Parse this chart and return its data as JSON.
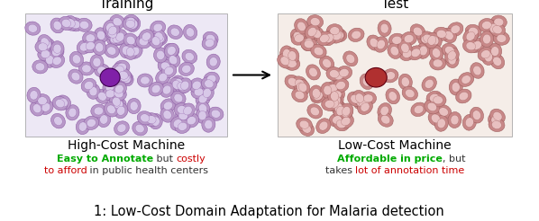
{
  "title_left": "Training",
  "title_right": "Test",
  "label_left": "High-Cost Machine",
  "label_right": "Low-Cost Machine",
  "caption": "1: Low-Cost Domain Adaptation for Malaria detection",
  "left_bg": "#ede8f5",
  "right_bg": "#f5ede8",
  "left_cell_outer": "#b898c8",
  "left_cell_inner": "#d8c8e8",
  "left_infected": "#8020a8",
  "right_cell_outer": "#c88888",
  "right_cell_inner": "#e8c0c0",
  "right_infected": "#b03030",
  "left_text_line1_parts": [
    {
      "text": "Easy to Annotate",
      "color": "#00aa00",
      "bold": true
    },
    {
      "text": " but ",
      "color": "#333333",
      "bold": false
    },
    {
      "text": "costly",
      "color": "#cc0000",
      "bold": false
    }
  ],
  "left_text_line2_parts": [
    {
      "text": "to afford",
      "color": "#cc0000",
      "bold": false
    },
    {
      "text": " in public health centers",
      "color": "#333333",
      "bold": false
    }
  ],
  "right_text_line1_parts": [
    {
      "text": "Affordable in price",
      "color": "#00aa00",
      "bold": true
    },
    {
      "text": ", but",
      "color": "#333333",
      "bold": false
    }
  ],
  "right_text_line2_parts": [
    {
      "text": "takes ",
      "color": "#333333",
      "bold": false
    },
    {
      "text": "lot of annotation time",
      "color": "#cc0000",
      "bold": false
    }
  ],
  "fig_width": 5.98,
  "fig_height": 2.46
}
